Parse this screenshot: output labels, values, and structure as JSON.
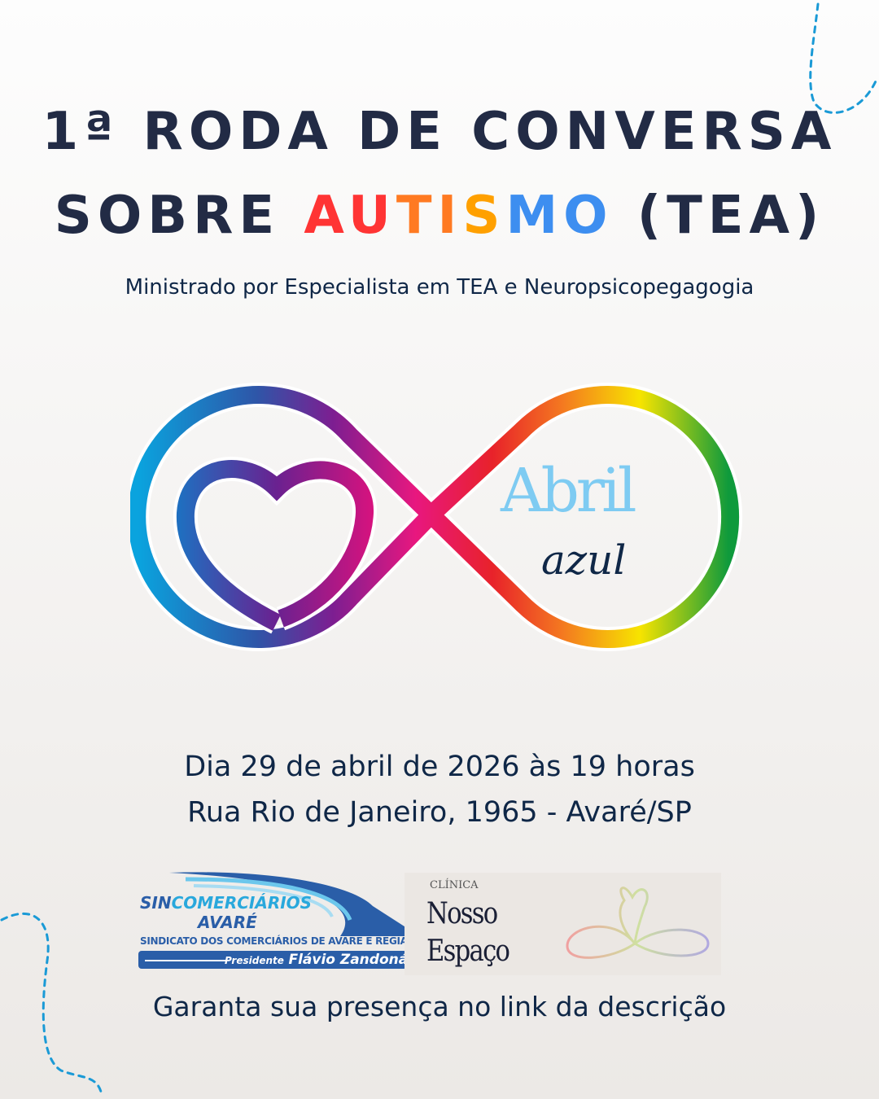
{
  "title": {
    "line1": "1ª RODA DE CONVERSA",
    "line2_prefix": "SOBRE",
    "line2_highlight_letters": [
      "A",
      "U",
      "T",
      "I",
      "S",
      "M",
      "O"
    ],
    "line2_highlight_colors": [
      "#ff3434",
      "#ff3434",
      "#ff7a22",
      "#ff7a22",
      "#ffa000",
      "#3d8ef0",
      "#3d8ef0"
    ],
    "line2_suffix": "(TEA)"
  },
  "subtitle": "Ministrado por Especialista em TEA e Neuropsicopegagogia",
  "emblem": {
    "word1": "Abril",
    "word2": "azul"
  },
  "event": {
    "date": "Dia 29 de abril de 2026 às 19 horas",
    "address": "Rua Rio de Janeiro, 1965 - Avaré/SP"
  },
  "sponsors": {
    "sin_a": "SIN",
    "sin_b": "COMERCIÁRIOS",
    "city": "AVARÉ",
    "union": "SINDICATO DOS COMERCIÁRIOS DE AVARÉ E REGIÃO",
    "pres_label": "Presidente",
    "pres_name": "Flávio Zandoná",
    "clinic_label": "CLÍNICA",
    "clinic_1": "Nosso",
    "clinic_2": "Espaço"
  },
  "cta": "Garanta sua presença no link da descrição",
  "colors": {
    "text": "#0f2747",
    "title": "#222b45",
    "accent_dots": "#1a9ad6"
  }
}
